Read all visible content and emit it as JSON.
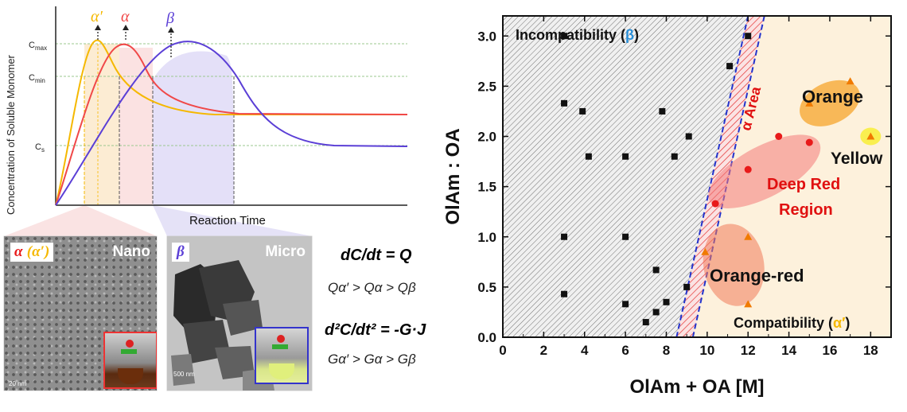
{
  "chart_data": [
    {
      "type": "line",
      "ylabel": "Concentration of Soluble Monomer",
      "xlabel": "Reaction Time",
      "y_levels": [
        "C<sub>max</sub>",
        "C<sub>min</sub>",
        "C<sub>s</sub>"
      ],
      "y_levels_text": [
        "Cmax",
        "Cmin",
        "Cs"
      ],
      "series": [
        {
          "name": "α′",
          "color": "#f5b800"
        },
        {
          "name": "α",
          "color": "#f04848"
        },
        {
          "name": "β",
          "color": "#5b3fd6"
        }
      ]
    },
    {
      "type": "scatter",
      "xlabel": "OlAm + OA [M]",
      "ylabel": "OlAm : OA",
      "xlim": [
        0,
        19
      ],
      "ylim": [
        0,
        3.2
      ],
      "xticks": [
        "0",
        "2",
        "4",
        "6",
        "8",
        "10",
        "12",
        "14",
        "16",
        "18"
      ],
      "yticks": [
        "0.0",
        "0.5",
        "1.0",
        "1.5",
        "2.0",
        "2.5",
        "3.0"
      ],
      "series": [
        {
          "name": "incompatible",
          "color": "#111111",
          "marker": "square",
          "points": [
            [
              3,
              3.0
            ],
            [
              3,
              2.33
            ],
            [
              3.9,
              2.25
            ],
            [
              4.2,
              1.8
            ],
            [
              6,
              1.8
            ],
            [
              7.8,
              2.25
            ],
            [
              8.4,
              1.8
            ],
            [
              9.1,
              2.0
            ],
            [
              12,
              3.0
            ],
            [
              11.1,
              2.7
            ],
            [
              3,
              1.0
            ],
            [
              6,
              1.0
            ],
            [
              3,
              0.43
            ],
            [
              6,
              0.33
            ],
            [
              7.5,
              0.67
            ],
            [
              8,
              0.35
            ],
            [
              7.5,
              0.25
            ],
            [
              7,
              0.15
            ],
            [
              9,
              0.5
            ]
          ]
        },
        {
          "name": "deep red",
          "color": "#e81a1a",
          "marker": "circle",
          "points": [
            [
              10.4,
              1.33
            ],
            [
              12,
              1.67
            ],
            [
              13.5,
              2.0
            ],
            [
              15,
              1.94
            ]
          ]
        },
        {
          "name": "orange",
          "color": "#f07a00",
          "marker": "triangle",
          "points": [
            [
              15,
              2.33
            ],
            [
              17,
              2.55
            ],
            [
              18,
              2.0
            ],
            [
              12,
              1.0
            ],
            [
              12,
              0.33
            ],
            [
              9.9,
              0.85
            ]
          ]
        }
      ],
      "annotations": {
        "incompat": "Incompatibility (",
        "incompat_sym": "β",
        "compat": "Compatibility (",
        "compat_sym": "α′",
        "area": "α Area",
        "orange": "Orange",
        "yellow": "Yellow",
        "deepred1": "Deep Red",
        "deepred2": "Region",
        "orangered": "Orange-red"
      }
    }
  ],
  "panels": {
    "nano_label_a": "α",
    "nano_label_b": "(α′)",
    "nano_caption": "Nano",
    "nano_scale": "20 nm",
    "micro_label": "β",
    "micro_caption": "Micro",
    "micro_scale": "500 nm"
  },
  "equations": {
    "eq1": "dC/dt = Q",
    "eq2": "Qα′ > Qα > Qβ",
    "eq3": "d²C/dt² = -G·J",
    "eq4": "Gα′ > Gα > Gβ"
  },
  "colors": {
    "alpha_prime": "#f5b800",
    "alpha": "#f04848",
    "beta": "#5b3fd6"
  }
}
